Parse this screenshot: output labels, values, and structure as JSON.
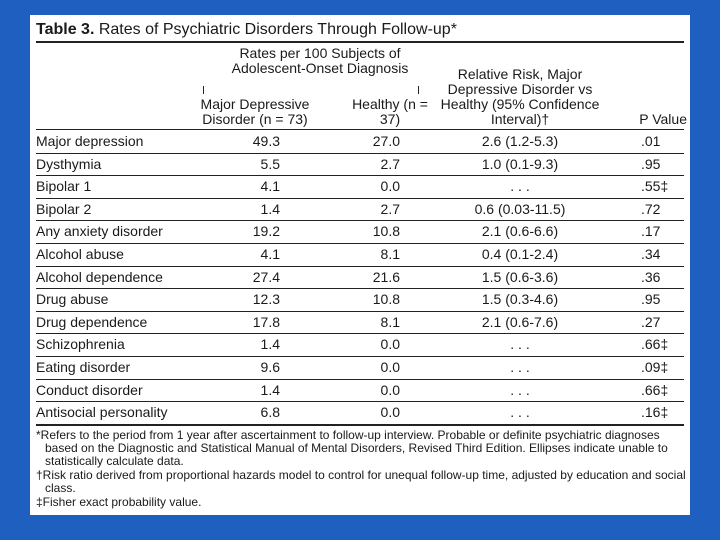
{
  "title": {
    "label": "Table 3.",
    "text": "Rates of Psychiatric Disorders Through Follow-up*"
  },
  "table": {
    "group_header": "Rates per 100 Subjects of Adolescent-Onset Diagnosis",
    "columns": [
      "Major Depressive Disorder (n = 73)",
      "Healthy (n = 37)",
      "Relative Risk, Major Depressive Disorder vs Healthy (95% Confidence Interval)†",
      "P Value"
    ],
    "rows": [
      [
        "Major depression",
        "49.3",
        "27.0",
        "2.6 (1.2-5.3)",
        ".01"
      ],
      [
        "Dysthymia",
        "5.5",
        "2.7",
        "1.0 (0.1-9.3)",
        ".95"
      ],
      [
        "Bipolar 1",
        "4.1",
        "0.0",
        ". . .",
        ".55‡"
      ],
      [
        "Bipolar 2",
        "1.4",
        "2.7",
        "0.6 (0.03-11.5)",
        ".72"
      ],
      [
        "Any anxiety disorder",
        "19.2",
        "10.8",
        "2.1 (0.6-6.6)",
        ".17"
      ],
      [
        "Alcohol abuse",
        "4.1",
        "8.1",
        "0.4 (0.1-2.4)",
        ".34"
      ],
      [
        "Alcohol dependence",
        "27.4",
        "21.6",
        "1.5 (0.6-3.6)",
        ".36"
      ],
      [
        "Drug abuse",
        "12.3",
        "10.8",
        "1.5 (0.3-4.6)",
        ".95"
      ],
      [
        "Drug dependence",
        "17.8",
        "8.1",
        "2.1 (0.6-7.6)",
        ".27"
      ],
      [
        "Schizophrenia",
        "1.4",
        "0.0",
        ". . .",
        ".66‡"
      ],
      [
        "Eating disorder",
        "9.6",
        "0.0",
        ". . .",
        ".09‡"
      ],
      [
        "Conduct disorder",
        "1.4",
        "0.0",
        ". . .",
        ".66‡"
      ],
      [
        "Antisocial personality",
        "6.8",
        "0.0",
        ". . .",
        ".16‡"
      ]
    ]
  },
  "footnotes": [
    "*Refers to the period from 1 year after ascertainment to follow-up interview. Probable or definite psychiatric diagnoses based on the Diagnostic and Statistical Manual of Mental Disorders, Revised Third Edition. Ellipses indicate unable to statistically calculate data.",
    "†Risk ratio derived from proportional hazards model to control for unequal follow-up time, adjusted by education and social class.",
    "‡Fisher exact probability value."
  ]
}
